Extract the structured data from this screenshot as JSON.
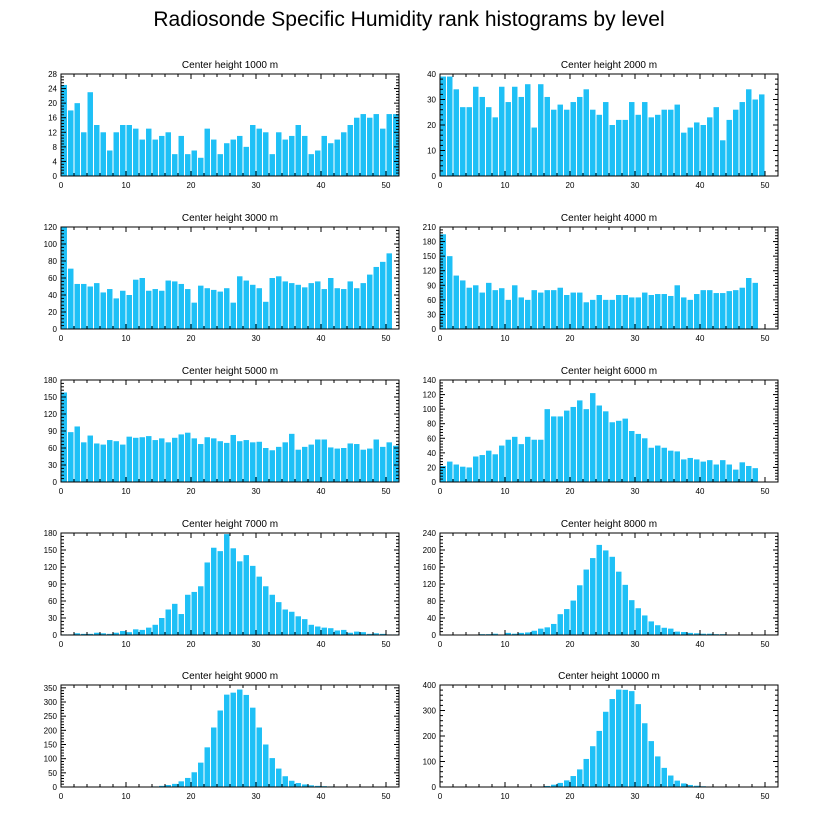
{
  "title": "Radiosonde Specific Humidity rank histograms by level",
  "bar_color": "#1ec0f6",
  "chart_data": [
    {
      "type": "bar",
      "title": "Center height 1000 m",
      "xlim": [
        0,
        52
      ],
      "ylim": [
        0,
        28
      ],
      "xticks": [
        0,
        10,
        20,
        30,
        40,
        50
      ],
      "yticks": [
        0,
        4,
        8,
        12,
        16,
        20,
        24,
        28
      ],
      "values": [
        25,
        18,
        20,
        12,
        23,
        14,
        12,
        7,
        12,
        14,
        14,
        13,
        10,
        13,
        10,
        11,
        12,
        6,
        11,
        6,
        7,
        5,
        13,
        10,
        6,
        9,
        10,
        11,
        8,
        14,
        13,
        12,
        6,
        12,
        10,
        11,
        14,
        11,
        6,
        7,
        11,
        9,
        10,
        12,
        14,
        16,
        17,
        16,
        17,
        13,
        17,
        17
      ]
    },
    {
      "type": "bar",
      "title": "Center height 2000 m",
      "xlim": [
        0,
        52
      ],
      "ylim": [
        0,
        40
      ],
      "xticks": [
        0,
        10,
        20,
        30,
        40,
        50
      ],
      "yticks": [
        0,
        10,
        20,
        30,
        40
      ],
      "values": [
        39,
        39,
        34,
        27,
        27,
        35,
        31,
        27,
        23,
        35,
        29,
        35,
        31,
        36,
        19,
        36,
        31,
        26,
        28,
        26,
        29,
        31,
        34,
        26,
        24,
        29,
        20,
        22,
        22,
        29,
        24,
        29,
        23,
        24,
        26,
        26,
        28,
        17,
        19,
        21,
        20,
        23,
        27,
        14,
        22,
        26,
        29,
        34,
        30,
        32
      ]
    },
    {
      "type": "bar",
      "title": "Center height 3000 m",
      "xlim": [
        0,
        52
      ],
      "ylim": [
        0,
        120
      ],
      "xticks": [
        0,
        10,
        20,
        30,
        40,
        50
      ],
      "yticks": [
        0,
        20,
        40,
        60,
        80,
        100,
        120
      ],
      "values": [
        120,
        71,
        53,
        53,
        50,
        54,
        43,
        47,
        36,
        45,
        40,
        58,
        60,
        45,
        47,
        45,
        57,
        56,
        53,
        47,
        31,
        51,
        48,
        46,
        44,
        48,
        31,
        62,
        57,
        52,
        48,
        32,
        60,
        62,
        56,
        54,
        52,
        49,
        54,
        56,
        47,
        60,
        48,
        47,
        56,
        48,
        54,
        64,
        73,
        79,
        89
      ]
    },
    {
      "type": "bar",
      "title": "Center height 4000 m",
      "xlim": [
        0,
        52
      ],
      "ylim": [
        0,
        210
      ],
      "xticks": [
        0,
        10,
        20,
        30,
        40,
        50
      ],
      "yticks": [
        0,
        30,
        60,
        90,
        120,
        150,
        180,
        210
      ],
      "values": [
        195,
        150,
        110,
        100,
        85,
        90,
        75,
        95,
        80,
        84,
        60,
        90,
        65,
        60,
        80,
        75,
        80,
        80,
        85,
        70,
        75,
        75,
        55,
        60,
        70,
        60,
        60,
        70,
        70,
        65,
        65,
        75,
        70,
        72,
        72,
        68,
        90,
        65,
        60,
        72,
        80,
        80,
        74,
        74,
        78,
        80,
        85,
        105,
        95
      ]
    },
    {
      "type": "bar",
      "title": "Center height 5000 m",
      "xlim": [
        0,
        52
      ],
      "ylim": [
        0,
        180
      ],
      "xticks": [
        0,
        10,
        20,
        30,
        40,
        50
      ],
      "yticks": [
        0,
        30,
        60,
        90,
        120,
        150,
        180
      ],
      "values": [
        158,
        88,
        98,
        70,
        82,
        68,
        66,
        74,
        72,
        66,
        80,
        78,
        79,
        81,
        74,
        77,
        70,
        78,
        84,
        87,
        77,
        67,
        79,
        77,
        72,
        69,
        83,
        72,
        74,
        70,
        71,
        60,
        56,
        62,
        70,
        85,
        57,
        62,
        66,
        75,
        75,
        61,
        59,
        60,
        68,
        67,
        57,
        59,
        75,
        62,
        70,
        64
      ]
    },
    {
      "type": "bar",
      "title": "Center height 6000 m",
      "xlim": [
        0,
        52
      ],
      "ylim": [
        0,
        140
      ],
      "xticks": [
        0,
        10,
        20,
        30,
        40,
        50
      ],
      "yticks": [
        0,
        20,
        40,
        60,
        80,
        100,
        120,
        140
      ],
      "values": [
        22,
        28,
        24,
        21,
        20,
        35,
        37,
        43,
        38,
        50,
        58,
        62,
        52,
        62,
        58,
        58,
        100,
        90,
        90,
        98,
        103,
        112,
        100,
        122,
        105,
        97,
        82,
        84,
        87,
        70,
        66,
        60,
        47,
        50,
        47,
        43,
        42,
        31,
        33,
        31,
        28,
        30,
        24,
        30,
        24,
        17,
        27,
        22,
        19
      ]
    },
    {
      "type": "bar",
      "title": "Center height 7000 m",
      "xlim": [
        0,
        52
      ],
      "ylim": [
        0,
        180
      ],
      "xticks": [
        0,
        10,
        20,
        30,
        40,
        50
      ],
      "yticks": [
        0,
        30,
        60,
        90,
        120,
        150,
        180
      ],
      "values": [
        1,
        1,
        3,
        2,
        2,
        4,
        3,
        2,
        4,
        7,
        5,
        10,
        9,
        13,
        18,
        30,
        45,
        55,
        37,
        71,
        76,
        86,
        128,
        154,
        148,
        178,
        153,
        130,
        141,
        122,
        103,
        86,
        71,
        58,
        45,
        41,
        33,
        28,
        18,
        15,
        13,
        12,
        8,
        9,
        4,
        6,
        5,
        2,
        3,
        2,
        1,
        1
      ]
    },
    {
      "type": "bar",
      "title": "Center height 8000 m",
      "xlim": [
        0,
        52
      ],
      "ylim": [
        0,
        240
      ],
      "xticks": [
        0,
        10,
        20,
        30,
        40,
        50
      ],
      "yticks": [
        0,
        40,
        80,
        120,
        160,
        200,
        240
      ],
      "values": [
        0,
        0,
        0,
        0,
        0,
        0,
        2,
        2,
        3,
        1,
        5,
        3,
        5,
        6,
        10,
        15,
        18,
        26,
        49,
        61,
        81,
        117,
        154,
        181,
        212,
        199,
        184,
        149,
        118,
        82,
        63,
        46,
        32,
        23,
        17,
        15,
        8,
        7,
        5,
        4,
        3,
        3,
        2,
        2,
        1,
        0,
        0,
        0,
        0,
        0,
        0,
        0
      ]
    },
    {
      "type": "bar",
      "title": "Center height 9000 m",
      "xlim": [
        0,
        52
      ],
      "ylim": [
        0,
        360
      ],
      "xticks": [
        0,
        10,
        20,
        30,
        40,
        50
      ],
      "yticks": [
        0,
        50,
        100,
        150,
        200,
        250,
        300,
        350
      ],
      "values": [
        0,
        0,
        0,
        0,
        0,
        0,
        0,
        0,
        0,
        0,
        0,
        0,
        0,
        1,
        2,
        4,
        7,
        11,
        20,
        32,
        52,
        86,
        140,
        210,
        270,
        326,
        333,
        344,
        325,
        280,
        210,
        150,
        102,
        65,
        38,
        22,
        14,
        9,
        6,
        4,
        3,
        2,
        1,
        1,
        1,
        0,
        0,
        0,
        0,
        0,
        0,
        0
      ]
    },
    {
      "type": "bar",
      "title": "Center height 10000 m",
      "xlim": [
        0,
        52
      ],
      "ylim": [
        0,
        400
      ],
      "xticks": [
        0,
        10,
        20,
        30,
        40,
        50
      ],
      "yticks": [
        0,
        100,
        200,
        300,
        400
      ],
      "values": [
        0,
        0,
        0,
        0,
        0,
        0,
        0,
        0,
        0,
        0,
        0,
        0,
        0,
        0,
        1,
        2,
        4,
        9,
        16,
        26,
        43,
        69,
        110,
        160,
        220,
        295,
        345,
        382,
        381,
        376,
        325,
        250,
        180,
        120,
        75,
        45,
        25,
        14,
        8,
        5,
        3,
        2,
        1,
        1,
        0,
        0,
        0,
        0,
        0,
        0,
        0,
        0
      ]
    }
  ]
}
